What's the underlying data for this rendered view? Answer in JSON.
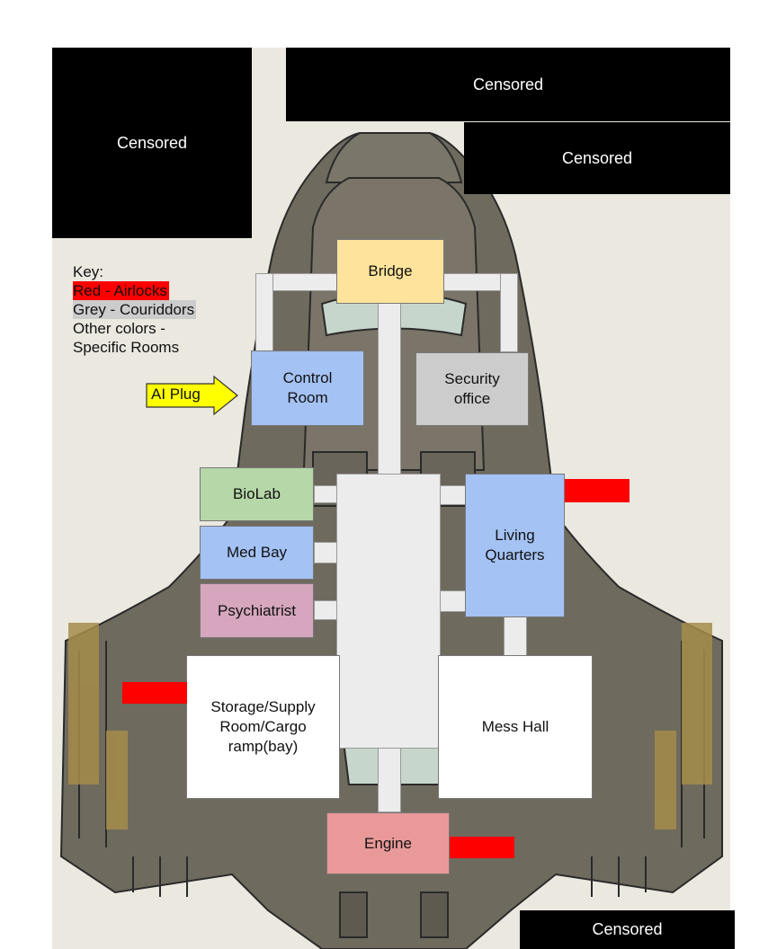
{
  "key": {
    "title": "Key:",
    "red": "Red - Airlocks",
    "grey": "Grey - Couriddors",
    "other_line1": "Other colors -",
    "other_line2": "Specific Rooms"
  },
  "ai_plug": {
    "label": "AI Plug"
  },
  "rooms": {
    "bridge": "Bridge",
    "control_line1": "Control",
    "control_line2": "Room",
    "security_line1": "Security",
    "security_line2": "office",
    "biolab": "BioLab",
    "medbay": "Med Bay",
    "psychiatrist": "Psychiatrist",
    "living_line1": "Living",
    "living_line2": "Quarters",
    "storage_line1": "Storage/Supply",
    "storage_line2": "Room/Cargo",
    "storage_line3": "ramp(bay)",
    "mess": "Mess Hall",
    "engine": "Engine"
  },
  "censored": [
    "Censored",
    "Censored",
    "Censored",
    "Censored"
  ],
  "colors": {
    "airlock": "#ff0000",
    "corridor": "#ececec",
    "bridge": "#fde39b",
    "control": "#a4c2f4",
    "security": "#cccccc",
    "biolab": "#b6d7a8",
    "medbay": "#a4c2f4",
    "psychiatrist": "#d5a6bd",
    "living": "#a4c2f4",
    "engine": "#ea9999",
    "ai_plug": "#ffff00"
  }
}
